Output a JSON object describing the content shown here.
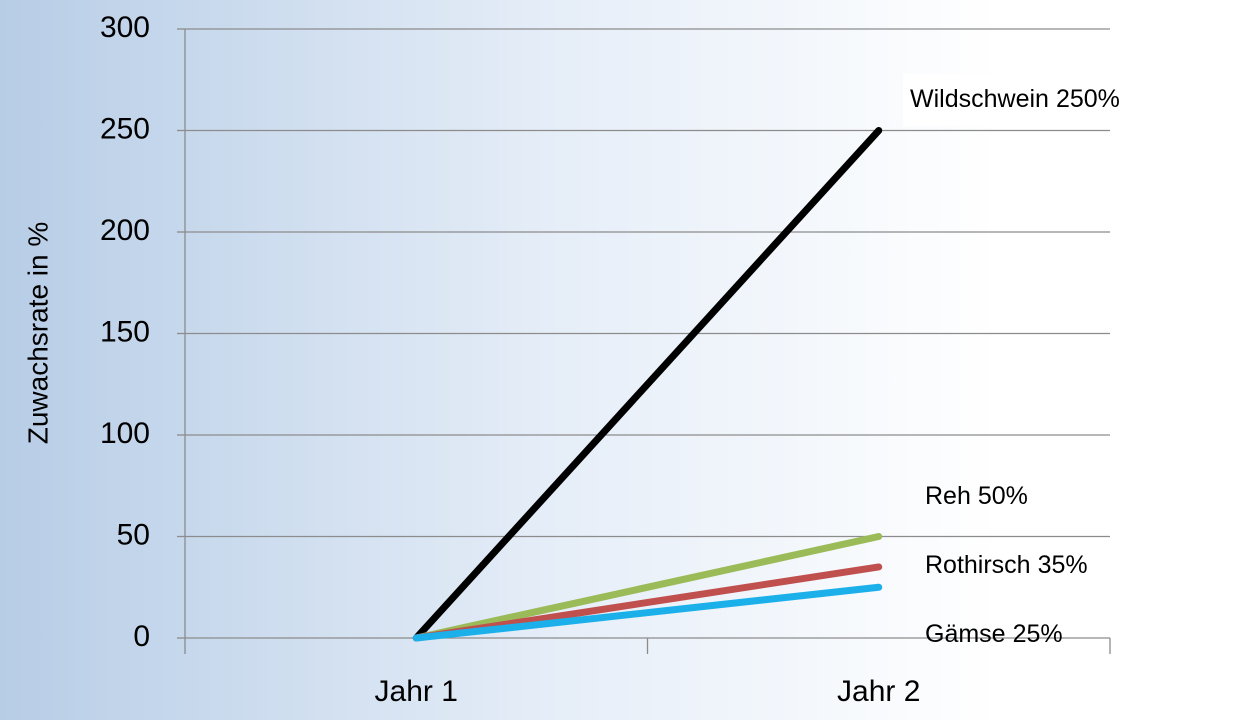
{
  "chart_data": {
    "type": "line",
    "y_label": "Zuwachsrate in %",
    "categories": [
      "Jahr 1",
      "Jahr 2"
    ],
    "series": [
      {
        "name": "Wildschwein",
        "color": "#000000",
        "values": [
          0,
          250
        ],
        "value_labels": [
          null,
          "250%"
        ]
      },
      {
        "name": "Reh",
        "color": "#9bbb59",
        "values": [
          0,
          50
        ],
        "value_labels": [
          null,
          "50%"
        ]
      },
      {
        "name": "Rothirsch",
        "color": "#c0504d",
        "values": [
          0,
          35
        ],
        "value_labels": [
          null,
          "35%"
        ]
      },
      {
        "name": "Gämse",
        "color": "#1cb0ea",
        "values": [
          0,
          25
        ],
        "value_labels": [
          null,
          "25%"
        ]
      }
    ],
    "ylim": [
      0,
      300
    ],
    "yticks": [
      0,
      50,
      100,
      150,
      200,
      250,
      300
    ],
    "grid": true
  }
}
